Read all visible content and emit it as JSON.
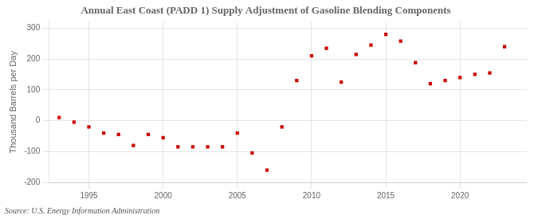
{
  "chart_data": {
    "type": "scatter",
    "title": "Annual East Coast (PADD 1) Supply Adjustment of Gasoline Blending Components",
    "ylabel": "Thousand Barrels per Day",
    "source": "Source: U.S. Energy Information Administration",
    "x": [
      1993,
      1994,
      1995,
      1996,
      1997,
      1998,
      1999,
      2000,
      2001,
      2002,
      2003,
      2004,
      2005,
      2006,
      2007,
      2008,
      2009,
      2010,
      2011,
      2012,
      2013,
      2014,
      2015,
      2016,
      2017,
      2018,
      2019,
      2020,
      2021,
      2022,
      2023
    ],
    "values": [
      10,
      -5,
      -20,
      -40,
      -45,
      -80,
      -45,
      -55,
      -85,
      -85,
      -85,
      -85,
      -40,
      -105,
      -160,
      -20,
      130,
      210,
      235,
      125,
      215,
      245,
      280,
      258,
      188,
      120,
      130,
      140,
      150,
      155,
      240
    ],
    "color": "#cc0000",
    "marker": "square",
    "xlim": [
      1992.3,
      2024.5
    ],
    "xticks": [
      1995,
      2000,
      2005,
      2010,
      2015,
      2020
    ],
    "ylim": [
      -200,
      320
    ],
    "yticks": [
      -200,
      -100,
      0,
      100,
      200,
      300
    ],
    "grid": true
  }
}
